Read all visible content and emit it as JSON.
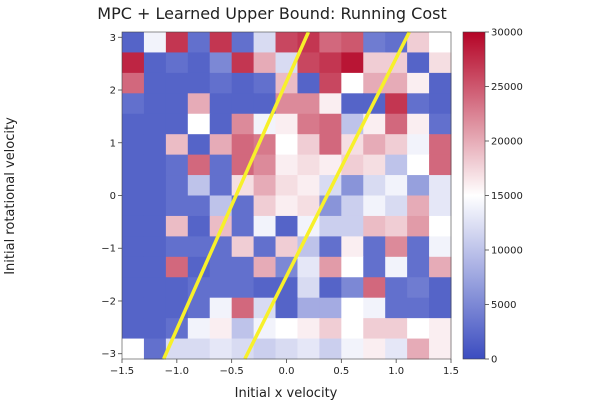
{
  "chart_data": {
    "type": "heatmap",
    "title": "MPC + Learned Upper Bound: Running Cost",
    "xlabel": "Initial x velocity",
    "ylabel": "Initial rotational velocity",
    "xlim": [
      -1.5,
      1.5
    ],
    "ylim": [
      -3.1,
      3.1
    ],
    "x_ticks": [
      -1.5,
      -1.0,
      -0.5,
      0.0,
      0.5,
      1.0,
      1.5
    ],
    "x_tick_labels": [
      "−1.5",
      "−1.0",
      "−0.5",
      "0.0",
      "0.5",
      "1.0",
      "1.5"
    ],
    "y_ticks": [
      -3,
      -2,
      -1,
      0,
      1,
      2,
      3
    ],
    "y_tick_labels": [
      "−3",
      "−2",
      "−1",
      "0",
      "1",
      "2",
      "3"
    ],
    "colorbar": {
      "min": 0,
      "max": 30000,
      "ticks": [
        0,
        5000,
        10000,
        15000,
        20000,
        25000,
        30000
      ],
      "tick_labels": [
        "0",
        "5000",
        "10000",
        "15000",
        "20000",
        "25000",
        "30000"
      ],
      "colormap": [
        "#3b4cc0",
        "#ffffff",
        "#b40426"
      ]
    },
    "grid": false,
    "grid_columns": 15,
    "grid_rows": 16,
    "cell_values_top_to_bottom": [
      [
        2000,
        14000,
        27000,
        3000,
        27000,
        3000,
        12000,
        26000,
        27000,
        24000,
        25000,
        4000,
        3000,
        18000,
        15000
      ],
      [
        28000,
        2000,
        3000,
        2000,
        5000,
        27000,
        20000,
        12000,
        26000,
        27000,
        29000,
        18000,
        18000,
        2000,
        17000
      ],
      [
        24000,
        2000,
        2000,
        2000,
        3000,
        2000,
        3000,
        19000,
        2000,
        26000,
        15000,
        20000,
        20000,
        16000,
        2000
      ],
      [
        3000,
        2000,
        2000,
        20000,
        2000,
        2000,
        2000,
        22000,
        22000,
        16000,
        2000,
        2000,
        27000,
        3000,
        2000
      ],
      [
        2000,
        2000,
        2000,
        15000,
        2000,
        22000,
        14000,
        16000,
        23000,
        24000,
        10000,
        16000,
        24000,
        16000,
        3000
      ],
      [
        2000,
        2000,
        19000,
        2000,
        20000,
        24000,
        23000,
        15000,
        18000,
        24000,
        17000,
        20000,
        18000,
        14000,
        24000
      ],
      [
        2000,
        2000,
        3000,
        24000,
        3000,
        24000,
        22000,
        16000,
        17000,
        16000,
        18000,
        17000,
        10000,
        15000,
        24000
      ],
      [
        2000,
        2000,
        3000,
        10000,
        3000,
        17000,
        20000,
        17000,
        16000,
        12000,
        6000,
        12000,
        14000,
        7000,
        13000
      ],
      [
        2000,
        2000,
        3000,
        3000,
        10000,
        3000,
        18000,
        16000,
        17000,
        6000,
        11000,
        14000,
        12000,
        20000,
        13000
      ],
      [
        2000,
        2000,
        19000,
        2000,
        19000,
        3000,
        14000,
        2000,
        14000,
        11000,
        11000,
        19000,
        18000,
        21000,
        15000
      ],
      [
        2000,
        2000,
        3000,
        3000,
        3000,
        18000,
        3000,
        18000,
        10000,
        3000,
        16000,
        3000,
        22000,
        3000,
        14000
      ],
      [
        2000,
        2000,
        24000,
        2000,
        3000,
        3000,
        20000,
        5000,
        13000,
        21000,
        15000,
        3000,
        14000,
        3000,
        20000
      ],
      [
        2000,
        2000,
        2000,
        3000,
        3000,
        3000,
        2000,
        2000,
        12000,
        2000,
        5000,
        24000,
        3000,
        4000,
        2000
      ],
      [
        2000,
        2000,
        2000,
        3000,
        14000,
        24000,
        12000,
        2000,
        8000,
        8000,
        15000,
        14000,
        3000,
        3000,
        2000
      ],
      [
        2000,
        2000,
        3000,
        14000,
        16000,
        10000,
        14000,
        15000,
        16000,
        18000,
        15000,
        18000,
        18000,
        15000,
        16000
      ],
      [
        15000,
        3000,
        12000,
        12000,
        13000,
        12000,
        11000,
        12000,
        13000,
        11000,
        14000,
        16000,
        13000,
        20000,
        16000
      ]
    ],
    "overlay_lines": [
      {
        "color": "#f7f02a",
        "points": [
          [
            -1.12,
            -3.1
          ],
          [
            0.2,
            3.1
          ]
        ]
      },
      {
        "color": "#f7f02a",
        "points": [
          [
            -0.38,
            -3.1
          ],
          [
            1.12,
            3.1
          ]
        ]
      }
    ]
  }
}
